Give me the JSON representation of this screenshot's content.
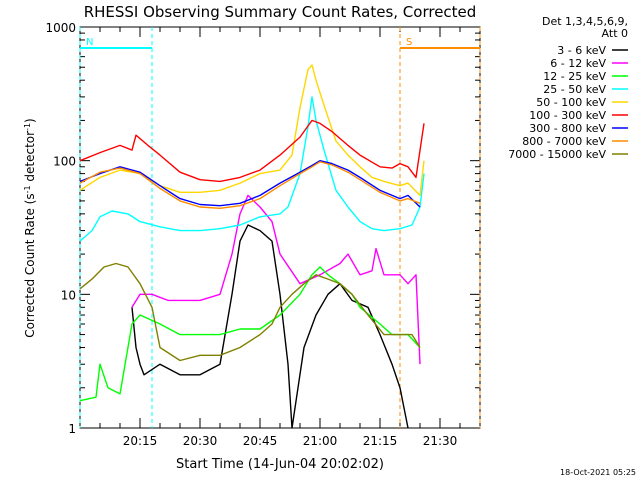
{
  "chart_data": {
    "type": "line",
    "title": "RHESSI Observing Summary Count Rates, Corrected",
    "xlabel": "Start Time (14-Jun-04 20:02:02)",
    "ylabel": "Corrected Count Rate (s",
    "ylabel_sup1": "-1",
    "ylabel_mid": " detector",
    "ylabel_sup2": "-1",
    "ylabel_end": ")",
    "y_scale": "log",
    "ylim": [
      1,
      1000
    ],
    "xlim_minutes": [
      0,
      100
    ],
    "x_tick_minutes": [
      15,
      30,
      45,
      60,
      75,
      90
    ],
    "x_ticks": [
      "20:15",
      "20:30",
      "20:45",
      "21:00",
      "21:15",
      "21:30"
    ],
    "y_ticks": [
      {
        "value": 1,
        "label": "1"
      },
      {
        "value": 10,
        "label": "10"
      },
      {
        "value": 100,
        "label": "100"
      },
      {
        "value": 1000,
        "label": "1000"
      }
    ],
    "legend_placement": "right",
    "legend_header": [
      "Det 1,3,4,5,6,9,",
      "Att 0"
    ],
    "timestamp": "18-Oct-2021 05:25",
    "annotations": [
      {
        "text": "N",
        "start": 0,
        "end": 18,
        "color": "#00ffff"
      },
      {
        "text": "S",
        "start": 80,
        "end": 100,
        "color": "#ff8c00"
      }
    ],
    "series": [
      {
        "name": "3 - 6 keV",
        "color": "#000000",
        "points": [
          [
            13,
            8
          ],
          [
            14,
            4
          ],
          [
            15,
            3
          ],
          [
            16,
            2.5
          ],
          [
            20,
            3
          ],
          [
            25,
            2.5
          ],
          [
            30,
            2.5
          ],
          [
            35,
            3
          ],
          [
            38,
            10
          ],
          [
            40,
            25
          ],
          [
            42,
            33
          ],
          [
            45,
            30
          ],
          [
            48,
            25
          ],
          [
            50,
            10
          ],
          [
            52,
            3
          ],
          [
            53,
            1
          ],
          [
            56,
            4
          ],
          [
            59,
            7
          ],
          [
            62,
            10
          ],
          [
            65,
            12
          ],
          [
            68,
            9
          ],
          [
            72,
            8
          ],
          [
            75,
            5
          ],
          [
            78,
            3
          ],
          [
            80,
            2
          ],
          [
            82,
            1
          ]
        ]
      },
      {
        "name": "6 - 12 keV",
        "color": "#ff00ff",
        "points": [
          [
            13,
            8
          ],
          [
            15,
            10
          ],
          [
            18,
            10
          ],
          [
            22,
            9
          ],
          [
            26,
            9
          ],
          [
            30,
            9
          ],
          [
            35,
            10
          ],
          [
            38,
            20
          ],
          [
            40,
            40
          ],
          [
            42,
            55
          ],
          [
            45,
            45
          ],
          [
            48,
            35
          ],
          [
            50,
            20
          ],
          [
            55,
            12
          ],
          [
            60,
            14
          ],
          [
            65,
            17
          ],
          [
            67,
            20
          ],
          [
            70,
            14
          ],
          [
            73,
            15
          ],
          [
            74,
            22
          ],
          [
            76,
            14
          ],
          [
            80,
            14
          ],
          [
            82,
            12
          ],
          [
            84,
            14
          ],
          [
            85,
            3
          ]
        ]
      },
      {
        "name": "12 - 25 keV",
        "color": "#00ff00",
        "points": [
          [
            0,
            1.6
          ],
          [
            4,
            1.7
          ],
          [
            5,
            3
          ],
          [
            7,
            2
          ],
          [
            10,
            1.8
          ],
          [
            13,
            6
          ],
          [
            15,
            7
          ],
          [
            20,
            6
          ],
          [
            25,
            5
          ],
          [
            30,
            5
          ],
          [
            35,
            5
          ],
          [
            40,
            5.5
          ],
          [
            45,
            5.5
          ],
          [
            50,
            7
          ],
          [
            55,
            10
          ],
          [
            58,
            14
          ],
          [
            60,
            16
          ],
          [
            62,
            14
          ],
          [
            65,
            12
          ],
          [
            68,
            10
          ],
          [
            70,
            8
          ],
          [
            75,
            6
          ],
          [
            78,
            5
          ],
          [
            80,
            5
          ],
          [
            82,
            5
          ],
          [
            85,
            4
          ]
        ]
      },
      {
        "name": "25 - 50 keV",
        "color": "#00ffff",
        "points": [
          [
            0,
            25
          ],
          [
            3,
            30
          ],
          [
            5,
            38
          ],
          [
            8,
            42
          ],
          [
            12,
            40
          ],
          [
            15,
            35
          ],
          [
            20,
            32
          ],
          [
            25,
            30
          ],
          [
            30,
            30
          ],
          [
            35,
            31
          ],
          [
            40,
            33
          ],
          [
            45,
            38
          ],
          [
            50,
            40
          ],
          [
            52,
            45
          ],
          [
            55,
            80
          ],
          [
            57,
            180
          ],
          [
            58,
            300
          ],
          [
            59,
            200
          ],
          [
            61,
            120
          ],
          [
            64,
            60
          ],
          [
            67,
            45
          ],
          [
            70,
            35
          ],
          [
            73,
            31
          ],
          [
            76,
            30
          ],
          [
            80,
            31
          ],
          [
            83,
            33
          ],
          [
            85,
            45
          ],
          [
            86,
            80
          ]
        ]
      },
      {
        "name": "50 - 100 keV",
        "color": "#ffd700",
        "points": [
          [
            0,
            60
          ],
          [
            5,
            75
          ],
          [
            10,
            85
          ],
          [
            15,
            80
          ],
          [
            20,
            65
          ],
          [
            25,
            58
          ],
          [
            30,
            58
          ],
          [
            35,
            60
          ],
          [
            40,
            68
          ],
          [
            45,
            80
          ],
          [
            50,
            85
          ],
          [
            53,
            110
          ],
          [
            55,
            250
          ],
          [
            57,
            480
          ],
          [
            58,
            520
          ],
          [
            59,
            400
          ],
          [
            61,
            260
          ],
          [
            64,
            140
          ],
          [
            67,
            110
          ],
          [
            70,
            90
          ],
          [
            73,
            75
          ],
          [
            76,
            70
          ],
          [
            80,
            65
          ],
          [
            82,
            68
          ],
          [
            85,
            55
          ],
          [
            86,
            100
          ]
        ]
      },
      {
        "name": "100 - 300 keV",
        "color": "#ff0000",
        "points": [
          [
            0,
            100
          ],
          [
            5,
            115
          ],
          [
            10,
            130
          ],
          [
            13,
            120
          ],
          [
            14,
            155
          ],
          [
            17,
            130
          ],
          [
            20,
            110
          ],
          [
            25,
            82
          ],
          [
            30,
            72
          ],
          [
            35,
            70
          ],
          [
            40,
            75
          ],
          [
            45,
            85
          ],
          [
            50,
            110
          ],
          [
            55,
            150
          ],
          [
            58,
            200
          ],
          [
            60,
            190
          ],
          [
            63,
            165
          ],
          [
            67,
            130
          ],
          [
            70,
            110
          ],
          [
            75,
            90
          ],
          [
            78,
            88
          ],
          [
            80,
            95
          ],
          [
            82,
            90
          ],
          [
            84,
            75
          ],
          [
            86,
            190
          ]
        ]
      },
      {
        "name": "300 - 800 keV",
        "color": "#0000ff",
        "points": [
          [
            0,
            70
          ],
          [
            5,
            80
          ],
          [
            10,
            90
          ],
          [
            15,
            82
          ],
          [
            20,
            65
          ],
          [
            25,
            52
          ],
          [
            30,
            47
          ],
          [
            35,
            46
          ],
          [
            40,
            48
          ],
          [
            45,
            55
          ],
          [
            50,
            68
          ],
          [
            55,
            82
          ],
          [
            58,
            92
          ],
          [
            60,
            100
          ],
          [
            63,
            95
          ],
          [
            67,
            85
          ],
          [
            70,
            75
          ],
          [
            75,
            60
          ],
          [
            80,
            52
          ],
          [
            82,
            55
          ],
          [
            85,
            45
          ]
        ]
      },
      {
        "name": "800 - 7000 keV",
        "color": "#ff8c00",
        "points": [
          [
            0,
            68
          ],
          [
            5,
            82
          ],
          [
            10,
            88
          ],
          [
            15,
            80
          ],
          [
            20,
            62
          ],
          [
            25,
            50
          ],
          [
            30,
            45
          ],
          [
            35,
            44
          ],
          [
            40,
            46
          ],
          [
            45,
            52
          ],
          [
            50,
            65
          ],
          [
            55,
            80
          ],
          [
            58,
            90
          ],
          [
            60,
            98
          ],
          [
            63,
            93
          ],
          [
            67,
            82
          ],
          [
            70,
            72
          ],
          [
            75,
            58
          ],
          [
            80,
            50
          ],
          [
            82,
            52
          ],
          [
            85,
            48
          ]
        ]
      },
      {
        "name": "7000 - 15000 keV",
        "color": "#808000",
        "points": [
          [
            0,
            11
          ],
          [
            3,
            13
          ],
          [
            6,
            16
          ],
          [
            9,
            17
          ],
          [
            12,
            16
          ],
          [
            15,
            12
          ],
          [
            18,
            8
          ],
          [
            20,
            4
          ],
          [
            25,
            3.2
          ],
          [
            30,
            3.5
          ],
          [
            35,
            3.5
          ],
          [
            40,
            4
          ],
          [
            45,
            5
          ],
          [
            48,
            6
          ],
          [
            50,
            8
          ],
          [
            53,
            10
          ],
          [
            56,
            12
          ],
          [
            59,
            14
          ],
          [
            62,
            13
          ],
          [
            65,
            12
          ],
          [
            68,
            10
          ],
          [
            72,
            7
          ],
          [
            76,
            5
          ],
          [
            80,
            5
          ],
          [
            83,
            5
          ],
          [
            85,
            4
          ]
        ]
      }
    ]
  }
}
